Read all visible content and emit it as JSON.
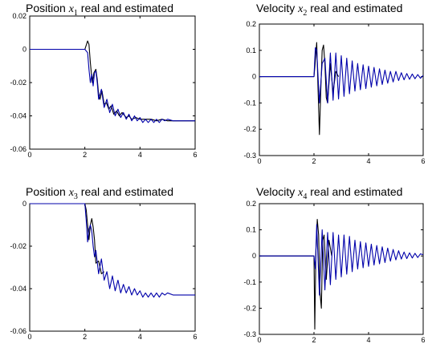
{
  "chart_data": [
    {
      "type": "line",
      "title": {
        "pre": "Position ",
        "var": "x",
        "sub": "1",
        "post": " real and estimated"
      },
      "xlim": [
        0,
        6
      ],
      "ylim": [
        -0.06,
        0.02
      ],
      "xticks": [
        0,
        2,
        4,
        6
      ],
      "xtick_labels": [
        "0",
        "2",
        "4",
        "6"
      ],
      "yticks": [
        0.02,
        0,
        -0.02,
        -0.04,
        -0.06
      ],
      "ytick_labels": [
        "0.02",
        "0",
        "-0.02",
        "-0.04",
        "-0.06"
      ],
      "grid": false,
      "series": [
        {
          "color": "#000000",
          "x": [
            0,
            2,
            2.1,
            2.15,
            2.2,
            2.27,
            2.33,
            2.4,
            2.45,
            2.5,
            2.55,
            2.62,
            2.7,
            2.78,
            2.87,
            2.95,
            3.05,
            3.15,
            3.25,
            3.35,
            3.5,
            3.6,
            3.7,
            3.85,
            4.0,
            4.2,
            4.4,
            4.6,
            4.8,
            5.0,
            5.2,
            5.4,
            5.6,
            5.8,
            6.0
          ],
          "y": [
            0,
            0,
            0.005,
            0.003,
            -0.008,
            -0.02,
            -0.014,
            -0.012,
            -0.018,
            -0.027,
            -0.03,
            -0.025,
            -0.033,
            -0.032,
            -0.036,
            -0.034,
            -0.039,
            -0.037,
            -0.04,
            -0.038,
            -0.041,
            -0.04,
            -0.042,
            -0.041,
            -0.042,
            -0.042,
            -0.042,
            -0.043,
            -0.042,
            -0.043,
            -0.043,
            -0.043,
            -0.043,
            -0.043,
            -0.043
          ]
        },
        {
          "color": "#0000aa",
          "x": [
            0,
            2,
            2.1,
            2.15,
            2.2,
            2.25,
            2.3,
            2.35,
            2.4,
            2.45,
            2.5,
            2.6,
            2.7,
            2.8,
            2.9,
            3.0,
            3.1,
            3.2,
            3.3,
            3.4,
            3.5,
            3.6,
            3.7,
            3.8,
            3.9,
            4.0,
            4.1,
            4.2,
            4.3,
            4.4,
            4.5,
            4.6,
            4.7,
            4.8,
            4.9,
            5.0,
            5.2,
            5.4,
            5.6,
            5.8,
            6.0
          ],
          "y": [
            0,
            0,
            -0.002,
            -0.012,
            -0.02,
            -0.015,
            -0.022,
            -0.014,
            -0.013,
            -0.02,
            -0.03,
            -0.024,
            -0.035,
            -0.03,
            -0.038,
            -0.033,
            -0.04,
            -0.036,
            -0.041,
            -0.038,
            -0.042,
            -0.039,
            -0.043,
            -0.04,
            -0.043,
            -0.041,
            -0.044,
            -0.042,
            -0.044,
            -0.042,
            -0.044,
            -0.042,
            -0.044,
            -0.042,
            -0.043,
            -0.042,
            -0.043,
            -0.043,
            -0.043,
            -0.043,
            -0.043
          ]
        }
      ]
    },
    {
      "type": "line",
      "title": {
        "pre": "Velocity ",
        "var": "x",
        "sub": "2",
        "post": " real and estimated"
      },
      "xlim": [
        0,
        6
      ],
      "ylim": [
        -0.3,
        0.2
      ],
      "xticks": [
        0,
        2,
        4,
        6
      ],
      "xtick_labels": [
        "0",
        "2",
        "4",
        "6"
      ],
      "yticks": [
        0.2,
        0.1,
        0,
        -0.1,
        -0.2,
        -0.3
      ],
      "ytick_labels": [
        "0.2",
        "0.1",
        "0",
        "-0.1",
        "-0.2",
        "-0.3"
      ],
      "grid": false,
      "series": [
        {
          "color": "#000000",
          "x": [
            0,
            2,
            2.05,
            2.1,
            2.15,
            2.2,
            2.25,
            2.3,
            2.35,
            2.4,
            2.45,
            2.5,
            2.6,
            2.7,
            2.8,
            2.9
          ],
          "y": [
            0,
            0,
            0.06,
            0.13,
            -0.05,
            -0.22,
            -0.05,
            0.1,
            0.12,
            0.05,
            -0.08,
            -0.1,
            0.05,
            -0.06,
            0.02,
            0
          ]
        },
        {
          "color": "#0000aa",
          "x": [
            0,
            2,
            2.05,
            2.1,
            2.2,
            2.3,
            2.4,
            2.5,
            2.6,
            2.7,
            2.8,
            2.9,
            3.0,
            3.1,
            3.2,
            3.3,
            3.4,
            3.5,
            3.6,
            3.7,
            3.8,
            3.9,
            4.0,
            4.1,
            4.2,
            4.3,
            4.4,
            4.5,
            4.6,
            4.7,
            4.8,
            4.9,
            5.0,
            5.1,
            5.2,
            5.3,
            5.4,
            5.5,
            5.6,
            5.7,
            5.8,
            5.9,
            6.0
          ],
          "y": [
            0,
            0,
            0.11,
            0.1,
            -0.1,
            0.05,
            0.07,
            -0.1,
            0.09,
            -0.09,
            0.09,
            -0.085,
            0.08,
            -0.075,
            0.07,
            -0.065,
            0.06,
            -0.055,
            0.05,
            -0.05,
            0.045,
            -0.045,
            0.04,
            -0.04,
            0.035,
            -0.035,
            0.03,
            -0.03,
            0.025,
            -0.025,
            0.02,
            -0.02,
            0.02,
            -0.015,
            0.015,
            -0.012,
            0.012,
            -0.01,
            0.01,
            -0.008,
            0.008,
            -0.006,
            0.005
          ]
        }
      ]
    },
    {
      "type": "line",
      "title": {
        "pre": "Position ",
        "var": "x",
        "sub": "3",
        "post": " real and estimated"
      },
      "xlim": [
        0,
        6
      ],
      "ylim": [
        -0.06,
        0
      ],
      "xticks": [
        0,
        2,
        4,
        6
      ],
      "xtick_labels": [
        "0",
        "2",
        "4",
        "6"
      ],
      "yticks": [
        0,
        -0.02,
        -0.04,
        -0.06
      ],
      "ytick_labels": [
        "0",
        "-0.02",
        "-0.04",
        "-0.06"
      ],
      "grid": false,
      "series": [
        {
          "color": "#000000",
          "x": [
            0,
            2,
            2.05,
            2.1,
            2.15,
            2.2,
            2.25,
            2.3,
            2.35,
            2.4,
            2.5,
            2.6,
            2.7
          ],
          "y": [
            0,
            0,
            -0.003,
            -0.01,
            -0.017,
            -0.01,
            -0.007,
            -0.011,
            -0.017,
            -0.028,
            -0.027,
            -0.033,
            -0.032
          ]
        },
        {
          "color": "#0000aa",
          "x": [
            0,
            2,
            2.05,
            2.1,
            2.15,
            2.2,
            2.25,
            2.3,
            2.35,
            2.4,
            2.5,
            2.6,
            2.7,
            2.8,
            2.9,
            3.0,
            3.1,
            3.2,
            3.3,
            3.4,
            3.5,
            3.6,
            3.7,
            3.8,
            3.9,
            4.0,
            4.1,
            4.2,
            4.3,
            4.4,
            4.5,
            4.6,
            4.7,
            4.8,
            4.9,
            5.0,
            5.2,
            5.4,
            5.6,
            5.8,
            6.0
          ],
          "y": [
            0,
            0,
            -0.008,
            -0.018,
            -0.012,
            -0.01,
            -0.013,
            -0.02,
            -0.025,
            -0.022,
            -0.033,
            -0.026,
            -0.036,
            -0.032,
            -0.04,
            -0.034,
            -0.041,
            -0.036,
            -0.042,
            -0.038,
            -0.042,
            -0.039,
            -0.043,
            -0.04,
            -0.043,
            -0.041,
            -0.044,
            -0.042,
            -0.044,
            -0.042,
            -0.044,
            -0.042,
            -0.044,
            -0.042,
            -0.043,
            -0.042,
            -0.043,
            -0.043,
            -0.043,
            -0.043,
            -0.043
          ]
        }
      ]
    },
    {
      "type": "line",
      "title": {
        "pre": "Velocity ",
        "var": "x",
        "sub": "4",
        "post": " real and estimated"
      },
      "xlim": [
        0,
        6
      ],
      "ylim": [
        -0.3,
        0.2
      ],
      "xticks": [
        0,
        2,
        4,
        6
      ],
      "xtick_labels": [
        "0",
        "2",
        "4",
        "6"
      ],
      "yticks": [
        0.2,
        0.1,
        0,
        -0.1,
        -0.2,
        -0.3
      ],
      "ytick_labels": [
        "0.2",
        "0.1",
        "0",
        "-0.1",
        "-0.2",
        "-0.3"
      ],
      "grid": false,
      "series": [
        {
          "color": "#000000",
          "x": [
            0,
            2,
            2.03,
            2.07,
            2.12,
            2.17,
            2.22,
            2.27,
            2.32,
            2.37,
            2.45,
            2.55,
            2.65
          ],
          "y": [
            0,
            0,
            -0.28,
            0.02,
            0.14,
            0.08,
            -0.14,
            -0.2,
            0.06,
            0.08,
            -0.09,
            0.06,
            0
          ]
        },
        {
          "color": "#0000aa",
          "x": [
            0,
            2,
            2.05,
            2.1,
            2.2,
            2.3,
            2.4,
            2.5,
            2.6,
            2.7,
            2.8,
            2.9,
            3.0,
            3.1,
            3.2,
            3.3,
            3.4,
            3.5,
            3.6,
            3.7,
            3.8,
            3.9,
            4.0,
            4.1,
            4.2,
            4.3,
            4.4,
            4.5,
            4.6,
            4.7,
            4.8,
            4.9,
            5.0,
            5.1,
            5.2,
            5.3,
            5.4,
            5.5,
            5.6,
            5.7,
            5.8,
            5.9,
            6.0
          ],
          "y": [
            0,
            0,
            -0.05,
            0.12,
            -0.15,
            0.1,
            -0.13,
            0.09,
            -0.11,
            0.09,
            -0.09,
            0.08,
            -0.08,
            0.08,
            -0.07,
            0.075,
            -0.06,
            0.06,
            -0.05,
            0.055,
            -0.045,
            0.05,
            -0.04,
            0.045,
            -0.035,
            0.04,
            -0.03,
            0.035,
            -0.025,
            0.03,
            -0.02,
            0.025,
            -0.015,
            0.02,
            -0.012,
            0.015,
            -0.01,
            0.012,
            -0.008,
            0.01,
            -0.006,
            0.008,
            0.005
          ]
        }
      ]
    }
  ]
}
